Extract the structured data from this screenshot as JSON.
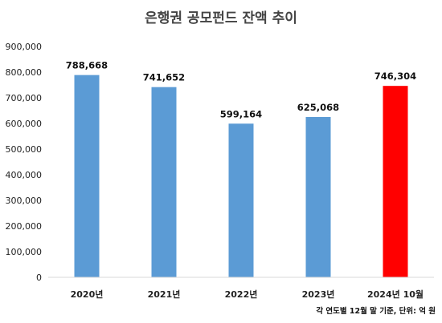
{
  "chart_data": {
    "type": "bar",
    "title": "은행권 공모펀드 잔액 추이",
    "categories": [
      "2020년",
      "2021년",
      "2022년",
      "2023년",
      "2024년 10월"
    ],
    "values": [
      788668,
      741652,
      599164,
      625068,
      746304
    ],
    "value_labels": [
      "788,668",
      "741,652",
      "599,164",
      "625,068",
      "746,304"
    ],
    "ylim": [
      0,
      900000
    ],
    "yticks": [
      0,
      100000,
      200000,
      300000,
      400000,
      500000,
      600000,
      700000,
      800000,
      900000
    ],
    "ytick_labels": [
      "0",
      "100,000",
      "200,000",
      "300,000",
      "400,000",
      "500,000",
      "600,000",
      "700,000",
      "800,000",
      "900,000"
    ],
    "xlabel": "",
    "ylabel": "",
    "grid": false,
    "colors": {
      "default": "#5B9BD5",
      "highlight": "#FF0000"
    },
    "highlight_index": 4,
    "note": "각 연도별 12월 말 기준, 단위: 억 원"
  }
}
